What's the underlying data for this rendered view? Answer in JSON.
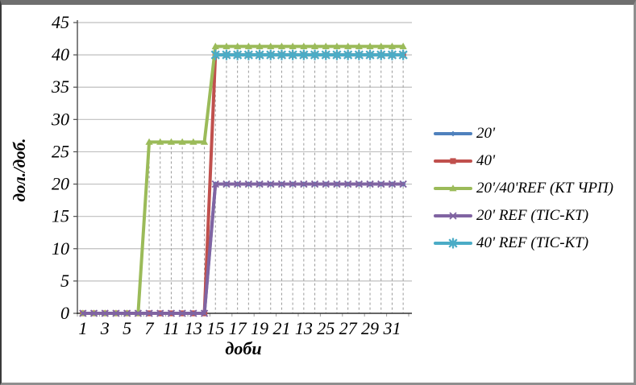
{
  "chart_data": {
    "type": "line",
    "title": "",
    "xlabel": "доби",
    "ylabel": "дол./доб.",
    "ylim": [
      0,
      45
    ],
    "y_ticks": [
      0,
      5,
      10,
      15,
      20,
      25,
      30,
      35,
      40,
      45
    ],
    "x_tick_labels": [
      "1",
      "3",
      "5",
      "7",
      "11",
      "13",
      "15",
      "17",
      "19",
      "21",
      "13",
      "25",
      "27",
      "29",
      "31"
    ],
    "n_categories": 30,
    "grid": "horizontal solid gridlines; vertical dashed drop lines under data points",
    "legend_position": "right",
    "colors": {
      "gridline": "#BFBFBF",
      "axis": "#4d4d4d",
      "drop_line": "#9a9a9a"
    },
    "series": [
      {
        "name": "20'",
        "color": "#4F81BD",
        "marker": "diamond",
        "values": [
          0,
          0,
          0,
          0,
          0,
          0,
          0,
          0,
          0,
          0,
          0,
          0,
          20,
          20,
          20,
          20,
          20,
          20,
          20,
          20,
          20,
          20,
          20,
          20,
          20,
          20,
          20,
          20,
          20,
          20
        ]
      },
      {
        "name": "40'",
        "color": "#C0504D",
        "marker": "square",
        "values": [
          0,
          0,
          0,
          0,
          0,
          0,
          0,
          0,
          0,
          0,
          0,
          0,
          40,
          40,
          40,
          40,
          40,
          40,
          40,
          40,
          40,
          40,
          40,
          40,
          40,
          40,
          40,
          40,
          40,
          40
        ]
      },
      {
        "name": "20'/40'REF (КТ ЧРП)",
        "color": "#9BBB59",
        "marker": "triangle",
        "values": [
          0,
          0,
          0,
          0,
          0,
          0,
          26.5,
          26.5,
          26.5,
          26.5,
          26.5,
          26.5,
          41.3,
          41.3,
          41.3,
          41.3,
          41.3,
          41.3,
          41.3,
          41.3,
          41.3,
          41.3,
          41.3,
          41.3,
          41.3,
          41.3,
          41.3,
          41.3,
          41.3,
          41.3
        ]
      },
      {
        "name": "20' REF (ТІС-КТ)",
        "color": "#8064A2",
        "marker": "x",
        "values": [
          0,
          0,
          0,
          0,
          0,
          0,
          0,
          0,
          0,
          0,
          0,
          0,
          20,
          20,
          20,
          20,
          20,
          20,
          20,
          20,
          20,
          20,
          20,
          20,
          20,
          20,
          20,
          20,
          20,
          20
        ]
      },
      {
        "name": "40' REF (ТІС-КТ)",
        "color": "#4BACC6",
        "marker": "star",
        "values": [
          null,
          null,
          null,
          null,
          null,
          null,
          null,
          null,
          null,
          null,
          null,
          null,
          40,
          40,
          40,
          40,
          40,
          40,
          40,
          40,
          40,
          40,
          40,
          40,
          40,
          40,
          40,
          40,
          40,
          40
        ]
      }
    ]
  }
}
